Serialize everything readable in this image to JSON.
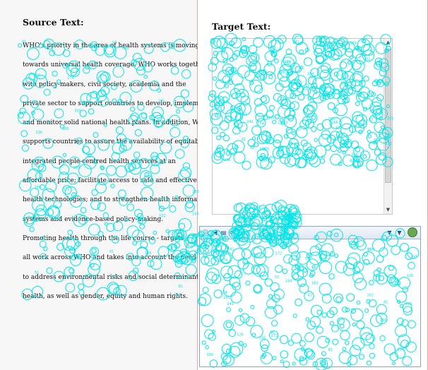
{
  "source": {
    "title": "Source Text:",
    "lines": [
      "WHO's priority in the area of health systems is moving",
      "towards universal health coverage. WHO works together",
      "with policy-makers, civil society, academia and the",
      "private sector to support countries to develop, implement",
      "and monitor solid national health plans. In addition, WHO",
      "supports countries to assure the availability of equitable",
      "integrated people-centred health services at an",
      "affordable price; facilitate access to safe and effective",
      "health technologies; and to strengthen health information",
      "systems and evidence-based policy-making.",
      "Promoting health through the life course - targets",
      "all work across WHO and takes into account the need",
      "to address environmental risks and social determinants of",
      "health, as well as gender, equity and human rights."
    ]
  },
  "target": {
    "title": "Target Text:",
    "scroll_up": "▲",
    "scroll_down": "▼"
  },
  "viewer": {
    "toolbar": [
      {
        "name": "zoom-icon",
        "glyph": "🔍"
      },
      {
        "name": "back-icon",
        "glyph": "◀"
      },
      {
        "name": "page-icon",
        "glyph": "▤"
      },
      {
        "name": "refresh-icon",
        "glyph": "⟳"
      }
    ],
    "dropdown_glyph": "▼",
    "colors": {
      "border": "#8aa4c8",
      "toolbar": "#dfe7f2",
      "logo": "#6aa84f"
    }
  },
  "overlay": {
    "color": "#00e5e8",
    "fixation_labels": [
      "166",
      "97",
      "53",
      "102",
      "183",
      "41",
      "172",
      "205",
      "91",
      "300",
      "241",
      "184",
      "174",
      "126",
      "236",
      "81"
    ]
  }
}
